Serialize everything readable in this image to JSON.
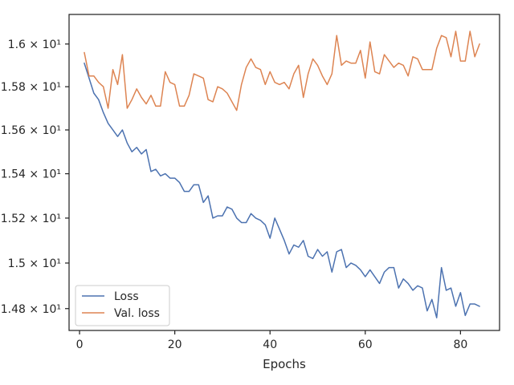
{
  "chart_data": {
    "type": "line",
    "xlabel": "Epochs",
    "ylabel": "",
    "title": "",
    "y_scale": "log",
    "xlim": [
      -2.2,
      88.2
    ],
    "ylim": [
      14.705,
      16.14
    ],
    "grid": false,
    "legend_position": "lower-left",
    "x_ticks": [
      {
        "value": 0,
        "label": "0"
      },
      {
        "value": 20,
        "label": "20"
      },
      {
        "value": 40,
        "label": "40"
      },
      {
        "value": 60,
        "label": "60"
      },
      {
        "value": 80,
        "label": "80"
      }
    ],
    "y_ticks": [
      {
        "value": 14.8,
        "label": "1.48 × 10¹"
      },
      {
        "value": 15.0,
        "label": "1.5 × 10¹"
      },
      {
        "value": 15.2,
        "label": "1.52 × 10¹"
      },
      {
        "value": 15.4,
        "label": "1.54 × 10¹"
      },
      {
        "value": 15.6,
        "label": "1.56 × 10¹"
      },
      {
        "value": 15.8,
        "label": "1.58 × 10¹"
      },
      {
        "value": 16.0,
        "label": "1.6 × 10¹"
      }
    ],
    "x": [
      1,
      2,
      3,
      4,
      5,
      6,
      7,
      8,
      9,
      10,
      11,
      12,
      13,
      14,
      15,
      16,
      17,
      18,
      19,
      20,
      21,
      22,
      23,
      24,
      25,
      26,
      27,
      28,
      29,
      30,
      31,
      32,
      33,
      34,
      35,
      36,
      37,
      38,
      39,
      40,
      41,
      42,
      43,
      44,
      45,
      46,
      47,
      48,
      49,
      50,
      51,
      52,
      53,
      54,
      55,
      56,
      57,
      58,
      59,
      60,
      61,
      62,
      63,
      64,
      65,
      66,
      67,
      68,
      69,
      70,
      71,
      72,
      73,
      74,
      75,
      76,
      77,
      78,
      79,
      80,
      81,
      82,
      83,
      84
    ],
    "series": [
      {
        "name": "Loss",
        "color": "#4c72b0",
        "values": [
          15.91,
          15.84,
          15.77,
          15.74,
          15.68,
          15.63,
          15.6,
          15.57,
          15.6,
          15.54,
          15.5,
          15.52,
          15.49,
          15.51,
          15.41,
          15.42,
          15.39,
          15.4,
          15.38,
          15.38,
          15.36,
          15.32,
          15.32,
          15.35,
          15.35,
          15.27,
          15.3,
          15.2,
          15.21,
          15.21,
          15.25,
          15.24,
          15.2,
          15.18,
          15.18,
          15.22,
          15.2,
          15.19,
          15.17,
          15.11,
          15.2,
          15.15,
          15.1,
          15.04,
          15.08,
          15.07,
          15.1,
          15.03,
          15.02,
          15.06,
          15.03,
          15.05,
          14.96,
          15.05,
          15.06,
          14.98,
          15.0,
          14.99,
          14.97,
          14.94,
          14.97,
          14.94,
          14.91,
          14.96,
          14.98,
          14.98,
          14.89,
          14.93,
          14.91,
          14.88,
          14.9,
          14.89,
          14.79,
          14.84,
          14.76,
          14.98,
          14.88,
          14.89,
          14.81,
          14.87,
          14.77,
          14.82,
          14.82,
          14.81
        ]
      },
      {
        "name": "Val. loss",
        "color": "#dd8452",
        "values": [
          15.96,
          15.85,
          15.85,
          15.82,
          15.8,
          15.7,
          15.88,
          15.81,
          15.95,
          15.7,
          15.74,
          15.79,
          15.75,
          15.72,
          15.76,
          15.71,
          15.71,
          15.87,
          15.82,
          15.81,
          15.71,
          15.71,
          15.76,
          15.86,
          15.85,
          15.84,
          15.74,
          15.73,
          15.8,
          15.79,
          15.77,
          15.73,
          15.69,
          15.81,
          15.89,
          15.93,
          15.89,
          15.88,
          15.81,
          15.87,
          15.82,
          15.81,
          15.82,
          15.79,
          15.86,
          15.9,
          15.75,
          15.86,
          15.93,
          15.9,
          15.85,
          15.81,
          15.86,
          16.04,
          15.9,
          15.92,
          15.91,
          15.91,
          15.97,
          15.84,
          16.01,
          15.87,
          15.86,
          15.95,
          15.92,
          15.89,
          15.91,
          15.9,
          15.85,
          15.94,
          15.93,
          15.88,
          15.88,
          15.88,
          15.98,
          16.04,
          16.03,
          15.94,
          16.06,
          15.92,
          15.92,
          16.06,
          15.94,
          16.0
        ]
      }
    ]
  }
}
